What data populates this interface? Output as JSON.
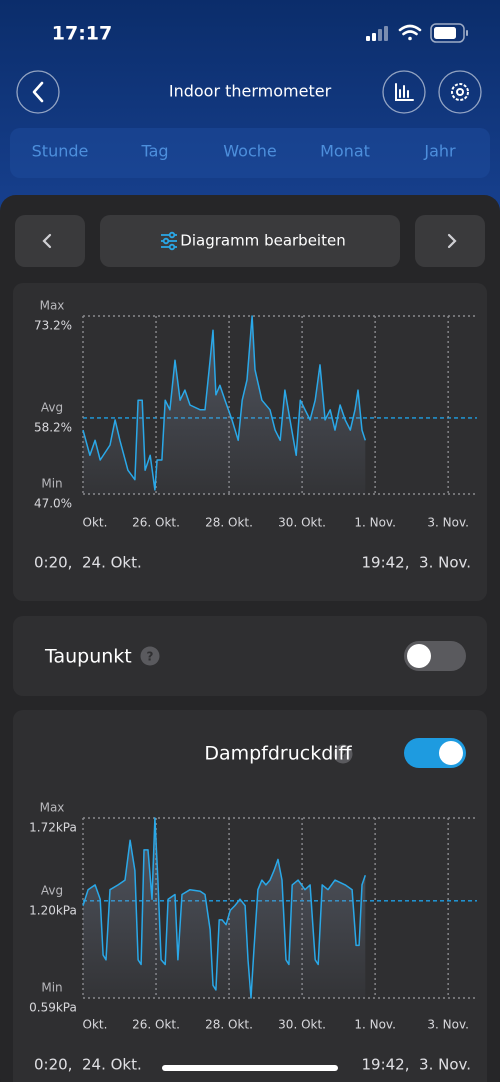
{
  "status_bar": {
    "time": "17:17"
  },
  "header": {
    "title": "Indoor thermometer"
  },
  "tabs": [
    "Stunde",
    "Tag",
    "Woche",
    "Monat",
    "Jahr"
  ],
  "edit_button": "Diagramm bearbeiten",
  "chart_data": [
    {
      "type": "line",
      "x": [
        24.0,
        24.19,
        24.33,
        24.47,
        24.74,
        24.88,
        25.01,
        25.23,
        25.42,
        25.51,
        25.62,
        25.7,
        25.84,
        25.97,
        26.03,
        26.16,
        26.25,
        26.38,
        26.52,
        26.66,
        26.79,
        26.93,
        27.21,
        27.34,
        27.48,
        27.56,
        27.64,
        27.75,
        27.89,
        28.08,
        28.25,
        28.36,
        28.49,
        28.63,
        28.71,
        28.9,
        29.12,
        29.26,
        29.4,
        29.53,
        29.67,
        29.84,
        29.95,
        30.22,
        30.36,
        30.49,
        30.63,
        30.77,
        30.9,
        31.04,
        31.18,
        31.32,
        31.45,
        31.53,
        31.64,
        31.73
      ],
      "series": [
        {
          "color": "#2aa8e8",
          "values": [
            56.4,
            52.7,
            54.9,
            52.0,
            54.2,
            57.9,
            54.9,
            50.5,
            49.1,
            60.8,
            60.8,
            50.5,
            52.7,
            47.6,
            52.0,
            52.0,
            60.8,
            59.4,
            66.7,
            60.8,
            62.3,
            60.1,
            59.4,
            59.4,
            66.7,
            71.1,
            61.6,
            63.0,
            60.8,
            57.9,
            54.9,
            60.8,
            63.8,
            73.2,
            65.3,
            60.8,
            59.4,
            56.4,
            54.9,
            62.3,
            57.9,
            52.7,
            60.8,
            57.9,
            60.8,
            66.0,
            57.9,
            59.4,
            56.4,
            60.1,
            57.9,
            56.4,
            59.4,
            62.3,
            56.4,
            54.9
          ]
        }
      ],
      "xlim": [
        24,
        34.79
      ],
      "xticks": [
        {
          "value": 24,
          "label": "Okt."
        },
        {
          "value": 26,
          "label": "26. Okt."
        },
        {
          "value": 28,
          "label": "28. Okt."
        },
        {
          "value": 30,
          "label": "30. Okt."
        },
        {
          "value": 32,
          "label": "1. Nov."
        },
        {
          "value": 34,
          "label": "3. Nov."
        }
      ],
      "ylim": [
        47.0,
        73.2
      ],
      "yticks": [
        {
          "value": 47.0,
          "label": "47.0%"
        },
        {
          "value": 58.2,
          "label": "58.2%"
        },
        {
          "value": 73.2,
          "label": "73.2%"
        }
      ],
      "ytick_titles": [
        "Min",
        "Avg",
        "Max"
      ],
      "grid_colors": [
        "#8a8a8e",
        "#1ea0e6",
        "#8a8a8e"
      ]
    },
    {
      "type": "line",
      "x": [
        24.0,
        24.14,
        24.33,
        24.47,
        24.55,
        24.63,
        24.74,
        24.96,
        25.15,
        25.29,
        25.42,
        25.51,
        25.59,
        25.67,
        25.78,
        25.89,
        25.97,
        26.05,
        26.14,
        26.25,
        26.33,
        26.52,
        26.6,
        26.71,
        26.93,
        27.21,
        27.34,
        27.48,
        27.56,
        27.64,
        27.73,
        27.81,
        27.92,
        28.03,
        28.16,
        28.3,
        28.44,
        28.52,
        28.6,
        28.68,
        28.79,
        28.9,
        29.01,
        29.12,
        29.23,
        29.34,
        29.45,
        29.56,
        29.64,
        29.73,
        29.89,
        30.08,
        30.22,
        30.36,
        30.44,
        30.55,
        30.71,
        30.9,
        31.18,
        31.37,
        31.48,
        31.56,
        31.64,
        31.73
      ],
      "series": [
        {
          "color": "#2aa8e8",
          "values": [
            1.17,
            1.27,
            1.3,
            1.21,
            0.86,
            0.83,
            1.27,
            1.3,
            1.33,
            1.58,
            1.39,
            0.83,
            0.8,
            1.52,
            1.52,
            1.21,
            1.72,
            1.33,
            0.83,
            0.8,
            1.21,
            1.24,
            0.83,
            1.24,
            1.27,
            1.26,
            1.24,
            1.02,
            0.67,
            0.64,
            1.08,
            1.08,
            1.05,
            1.14,
            1.17,
            1.21,
            1.17,
            0.83,
            0.59,
            0.89,
            1.27,
            1.33,
            1.3,
            1.33,
            1.39,
            1.46,
            1.33,
            0.83,
            0.8,
            1.3,
            1.33,
            1.27,
            1.3,
            0.83,
            0.8,
            1.3,
            1.27,
            1.33,
            1.3,
            1.27,
            0.92,
            0.92,
            1.3,
            1.36
          ]
        }
      ],
      "xlim": [
        24,
        34.79
      ],
      "xticks": [
        {
          "value": 24,
          "label": "Okt."
        },
        {
          "value": 26,
          "label": "26. Okt."
        },
        {
          "value": 28,
          "label": "28. Okt."
        },
        {
          "value": 30,
          "label": "30. Okt."
        },
        {
          "value": 32,
          "label": "1. Nov."
        },
        {
          "value": 34,
          "label": "3. Nov."
        }
      ],
      "ylim": [
        0.59,
        1.72
      ],
      "yticks": [
        {
          "value": 0.59,
          "label": "0.59kPa"
        },
        {
          "value": 1.2,
          "label": "1.20kPa"
        },
        {
          "value": 1.72,
          "label": "1.72kPa"
        }
      ],
      "ytick_titles": [
        "Min",
        "Avg",
        "Max"
      ],
      "grid_colors": [
        "#8a8a8e",
        "#1ea0e6",
        "#8a8a8e"
      ]
    }
  ],
  "ranges": [
    {
      "start": "0:20,  24. Okt.",
      "end": "19:42,  3. Nov."
    },
    {
      "start": "0:20,  24. Okt.",
      "end": "19:42,  3. Nov."
    }
  ],
  "toggles": [
    {
      "label": "Taupunkt",
      "on": false
    },
    {
      "label": "Dampfdruckdiff",
      "on": true
    }
  ]
}
